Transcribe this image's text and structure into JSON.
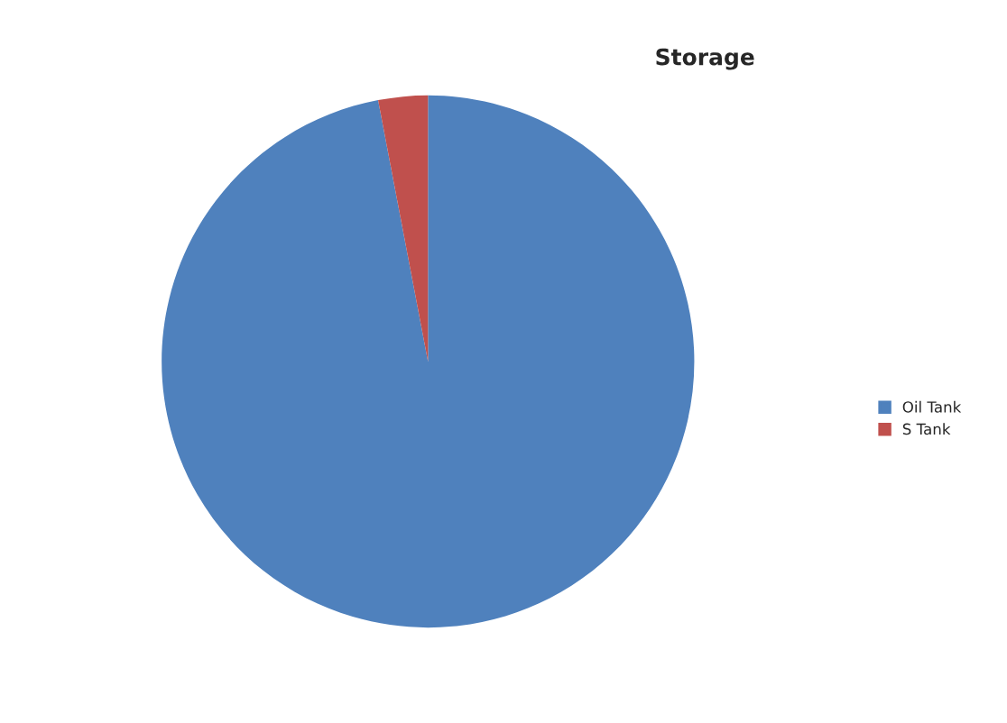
{
  "chart_data": {
    "type": "pie",
    "title": "Storage",
    "categories": [
      "Oil Tank",
      "S Tank"
    ],
    "values": [
      97,
      3
    ],
    "colors": [
      "#4f81bd",
      "#c0504d"
    ],
    "legend": "right"
  }
}
